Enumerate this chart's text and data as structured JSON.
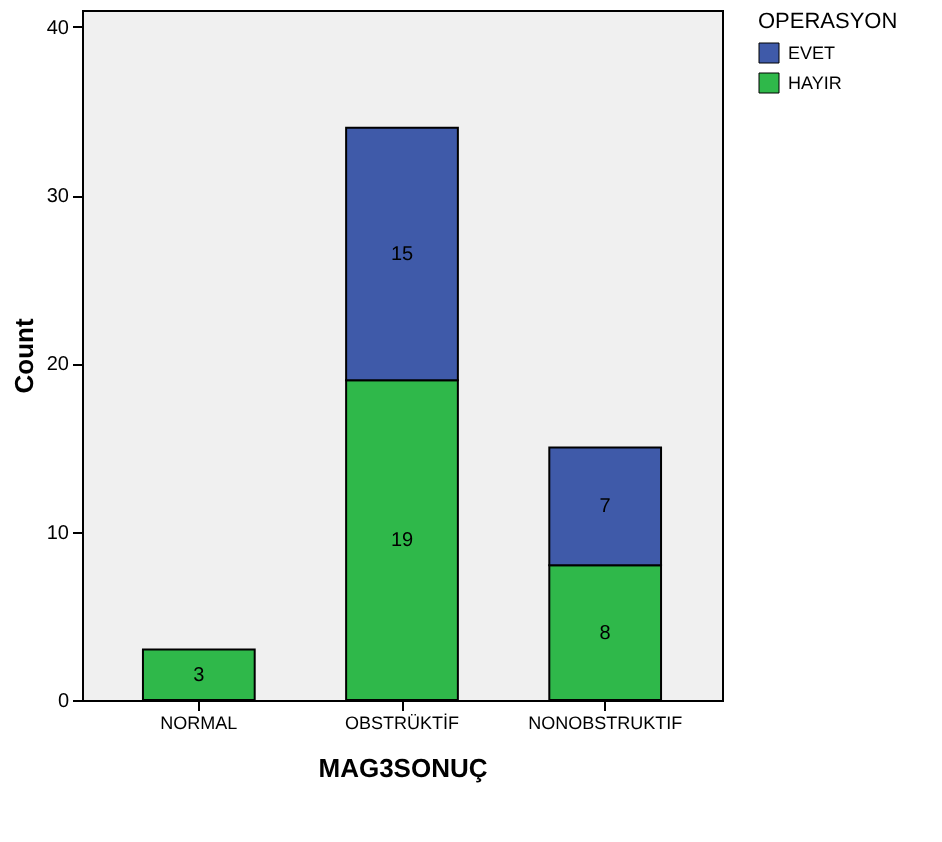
{
  "chart_data": {
    "type": "bar",
    "stacked": true,
    "xlabel": "MAG3SONUÇ",
    "ylabel": "Count",
    "legend_title": "OPERASYON",
    "categories": [
      "NORMAL",
      "OBSTRÜKTİF",
      "NONOBSTRUKTIF"
    ],
    "series": [
      {
        "name": "HAYIR",
        "color": "#2fb84a",
        "values": [
          3,
          19,
          8
        ]
      },
      {
        "name": "EVET",
        "color": "#3f5aa9",
        "values": [
          null,
          15,
          7
        ]
      }
    ],
    "ylim": [
      0,
      41
    ],
    "yticks": [
      0,
      10,
      20,
      30,
      40
    ],
    "grid": false,
    "legend": "top right",
    "data_labels": true
  }
}
